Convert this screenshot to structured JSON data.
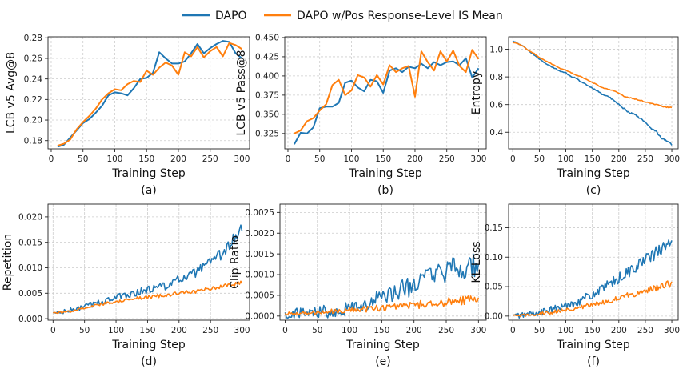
{
  "legend": {
    "entries": [
      {
        "name": "DAPO",
        "color": "#1f77b4"
      },
      {
        "name": "DAPO w/Pos Response-Level IS Mean",
        "color": "#ff7f0e"
      }
    ]
  },
  "chart_data": [
    {
      "type": "line",
      "caption": "(a)",
      "xlabel": "Training Step",
      "ylabel": "LCB v5 Avg@8",
      "xlim": [
        -5,
        312
      ],
      "ylim": [
        0.172,
        0.281
      ],
      "xticks": [
        0,
        50,
        100,
        150,
        200,
        250,
        300
      ],
      "yticks": [
        0.18,
        0.2,
        0.22,
        0.24,
        0.26,
        0.28
      ],
      "ytick_labels": [
        "0.18",
        "0.20",
        "0.22",
        "0.24",
        "0.26",
        "0.28"
      ],
      "grid": true,
      "series": [
        {
          "name": "DAPO",
          "color": "#1f77b4",
          "x": [
            10,
            20,
            30,
            40,
            50,
            60,
            70,
            80,
            90,
            100,
            110,
            120,
            130,
            140,
            150,
            160,
            170,
            180,
            190,
            200,
            210,
            220,
            230,
            240,
            250,
            260,
            270,
            280,
            290,
            300
          ],
          "y": [
            0.174,
            0.176,
            0.183,
            0.19,
            0.197,
            0.201,
            0.207,
            0.214,
            0.224,
            0.227,
            0.226,
            0.224,
            0.231,
            0.24,
            0.241,
            0.246,
            0.266,
            0.26,
            0.255,
            0.255,
            0.257,
            0.265,
            0.274,
            0.265,
            0.27,
            0.274,
            0.277,
            0.276,
            0.265,
            0.26
          ]
        },
        {
          "name": "DAPO w/Pos Response-Level IS Mean",
          "color": "#ff7f0e",
          "x": [
            10,
            20,
            30,
            40,
            50,
            60,
            70,
            80,
            90,
            100,
            110,
            120,
            130,
            140,
            150,
            160,
            170,
            180,
            190,
            200,
            210,
            220,
            230,
            240,
            250,
            260,
            270,
            280,
            290,
            300
          ],
          "y": [
            0.175,
            0.177,
            0.181,
            0.191,
            0.198,
            0.204,
            0.211,
            0.22,
            0.226,
            0.23,
            0.229,
            0.235,
            0.238,
            0.237,
            0.248,
            0.244,
            0.251,
            0.256,
            0.253,
            0.244,
            0.266,
            0.262,
            0.271,
            0.261,
            0.267,
            0.271,
            0.262,
            0.275,
            0.273,
            0.269
          ]
        }
      ]
    },
    {
      "type": "line",
      "caption": "(b)",
      "xlabel": "Training Step",
      "ylabel": "LCB v5 Pass@8",
      "xlim": [
        -5,
        312
      ],
      "ylim": [
        0.305,
        0.451
      ],
      "xticks": [
        0,
        50,
        100,
        150,
        200,
        250,
        300
      ],
      "yticks": [
        0.325,
        0.35,
        0.375,
        0.4,
        0.425,
        0.45
      ],
      "ytick_labels": [
        "0.325",
        "0.350",
        "0.375",
        "0.400",
        "0.425",
        "0.450"
      ],
      "grid": true,
      "series": [
        {
          "name": "DAPO",
          "color": "#1f77b4",
          "x": [
            10,
            20,
            30,
            40,
            50,
            60,
            70,
            80,
            90,
            100,
            110,
            120,
            130,
            140,
            150,
            160,
            170,
            180,
            190,
            200,
            210,
            220,
            230,
            240,
            250,
            260,
            270,
            280,
            290,
            300
          ],
          "y": [
            0.311,
            0.326,
            0.325,
            0.333,
            0.358,
            0.36,
            0.36,
            0.365,
            0.391,
            0.394,
            0.385,
            0.38,
            0.395,
            0.393,
            0.378,
            0.407,
            0.41,
            0.405,
            0.412,
            0.41,
            0.416,
            0.41,
            0.418,
            0.414,
            0.418,
            0.419,
            0.414,
            0.423,
            0.398,
            0.41
          ]
        },
        {
          "name": "DAPO w/Pos Response-Level IS Mean",
          "color": "#ff7f0e",
          "x": [
            10,
            20,
            30,
            40,
            50,
            60,
            70,
            80,
            90,
            100,
            110,
            120,
            130,
            140,
            150,
            160,
            170,
            180,
            190,
            200,
            210,
            220,
            230,
            240,
            250,
            260,
            270,
            280,
            290,
            300
          ],
          "y": [
            0.325,
            0.329,
            0.341,
            0.345,
            0.355,
            0.363,
            0.388,
            0.395,
            0.375,
            0.381,
            0.401,
            0.398,
            0.386,
            0.401,
            0.389,
            0.414,
            0.405,
            0.41,
            0.413,
            0.373,
            0.432,
            0.418,
            0.407,
            0.432,
            0.419,
            0.433,
            0.413,
            0.405,
            0.434,
            0.422
          ]
        }
      ]
    },
    {
      "type": "line",
      "caption": "(c)",
      "xlabel": "Training Step",
      "ylabel": "Entropy",
      "xlim": [
        -8,
        312
      ],
      "ylim": [
        0.28,
        1.09
      ],
      "xticks": [
        0,
        50,
        100,
        150,
        200,
        250,
        300
      ],
      "yticks": [
        0.4,
        0.6,
        0.8,
        1.0
      ],
      "ytick_labels": [
        "0.4",
        "0.6",
        "0.8",
        "1.0"
      ],
      "grid": true,
      "series": [
        {
          "name": "DAPO",
          "color": "#1f77b4",
          "x": [
            0,
            10,
            20,
            30,
            40,
            50,
            60,
            70,
            80,
            90,
            100,
            110,
            120,
            130,
            140,
            150,
            160,
            170,
            180,
            190,
            200,
            210,
            220,
            230,
            240,
            250,
            260,
            270,
            280,
            290,
            300
          ],
          "y": [
            1.06,
            1.04,
            1.02,
            0.99,
            0.96,
            0.93,
            0.9,
            0.88,
            0.86,
            0.84,
            0.83,
            0.8,
            0.79,
            0.76,
            0.74,
            0.72,
            0.7,
            0.67,
            0.66,
            0.63,
            0.6,
            0.57,
            0.54,
            0.53,
            0.5,
            0.47,
            0.43,
            0.41,
            0.36,
            0.34,
            0.31
          ]
        },
        {
          "name": "DAPO w/Pos Response-Level IS Mean",
          "color": "#ff7f0e",
          "x": [
            0,
            10,
            20,
            30,
            40,
            50,
            60,
            70,
            80,
            90,
            100,
            110,
            120,
            130,
            140,
            150,
            160,
            170,
            180,
            190,
            200,
            210,
            220,
            230,
            240,
            250,
            260,
            270,
            280,
            290,
            300
          ],
          "y": [
            1.05,
            1.04,
            1.02,
            0.99,
            0.97,
            0.94,
            0.92,
            0.9,
            0.88,
            0.86,
            0.85,
            0.83,
            0.81,
            0.8,
            0.78,
            0.76,
            0.74,
            0.72,
            0.71,
            0.7,
            0.68,
            0.66,
            0.65,
            0.64,
            0.63,
            0.62,
            0.61,
            0.6,
            0.59,
            0.58,
            0.58
          ]
        }
      ]
    },
    {
      "type": "line",
      "caption": "(d)",
      "xlabel": "Training Step",
      "ylabel": "Repetition",
      "xlim": [
        -8,
        312
      ],
      "ylim": [
        -0.0003,
        0.0225
      ],
      "xticks": [
        0,
        50,
        100,
        150,
        200,
        250,
        300
      ],
      "yticks": [
        0.0,
        0.005,
        0.01,
        0.015,
        0.02
      ],
      "ytick_labels": [
        "0.000",
        "0.005",
        "0.010",
        "0.015",
        "0.020"
      ],
      "grid": true,
      "series": [
        {
          "name": "DAPO",
          "color": "#1f77b4",
          "x": [
            0,
            10,
            20,
            30,
            40,
            50,
            60,
            70,
            80,
            90,
            100,
            110,
            120,
            130,
            140,
            150,
            160,
            170,
            180,
            190,
            200,
            210,
            220,
            230,
            240,
            250,
            260,
            270,
            280,
            290,
            300
          ],
          "y": [
            0.0011,
            0.0012,
            0.0014,
            0.0017,
            0.002,
            0.0024,
            0.0027,
            0.0031,
            0.0034,
            0.0038,
            0.0042,
            0.0044,
            0.0048,
            0.0051,
            0.0054,
            0.0056,
            0.006,
            0.0063,
            0.0066,
            0.007,
            0.0076,
            0.0081,
            0.0086,
            0.0093,
            0.0101,
            0.011,
            0.0119,
            0.013,
            0.0145,
            0.0162,
            0.0175
          ]
        },
        {
          "name": "DAPO w/Pos Response-Level IS Mean",
          "color": "#ff7f0e",
          "x": [
            0,
            10,
            20,
            30,
            40,
            50,
            60,
            70,
            80,
            90,
            100,
            110,
            120,
            130,
            140,
            150,
            160,
            170,
            180,
            190,
            200,
            210,
            220,
            230,
            240,
            250,
            260,
            270,
            280,
            290,
            300
          ],
          "y": [
            0.0011,
            0.0012,
            0.0013,
            0.0015,
            0.0018,
            0.0021,
            0.0024,
            0.0027,
            0.0029,
            0.0031,
            0.0033,
            0.0035,
            0.0037,
            0.0039,
            0.0041,
            0.0042,
            0.0044,
            0.0045,
            0.0047,
            0.0048,
            0.005,
            0.0052,
            0.0053,
            0.0055,
            0.0057,
            0.0059,
            0.0061,
            0.0063,
            0.0065,
            0.0067,
            0.007
          ]
        }
      ]
    },
    {
      "type": "line",
      "caption": "(e)",
      "xlabel": "Training Step",
      "ylabel": "Clip Ratio",
      "xlim": [
        -8,
        312
      ],
      "ylim": [
        -0.0001,
        0.0027
      ],
      "xticks": [
        0,
        50,
        100,
        150,
        200,
        250,
        300
      ],
      "yticks": [
        0.0,
        0.0005,
        0.001,
        0.0015,
        0.002,
        0.0025
      ],
      "ytick_labels": [
        "0.0000",
        "0.0005",
        "0.0010",
        "0.0015",
        "0.0020",
        "0.0025"
      ],
      "grid": true,
      "series": [
        {
          "name": "DAPO",
          "color": "#1f77b4",
          "x": [
            0,
            10,
            20,
            30,
            40,
            50,
            60,
            70,
            80,
            90,
            100,
            110,
            120,
            130,
            140,
            150,
            160,
            170,
            180,
            190,
            200,
            210,
            220,
            230,
            240,
            250,
            260,
            270,
            280,
            290,
            300
          ],
          "y": [
            5e-05,
            6e-05,
            7e-05,
            8e-05,
            9e-05,
            0.00011,
            0.00012,
            0.00014,
            0.00016,
            0.00018,
            0.00021,
            0.00024,
            0.00028,
            0.00032,
            0.00037,
            0.00043,
            0.00049,
            0.00056,
            0.00063,
            0.0007,
            0.00077,
            0.00084,
            0.0009,
            0.00096,
            0.00101,
            0.00106,
            0.00111,
            0.00115,
            0.00119,
            0.00123,
            0.00125
          ]
        },
        {
          "name": "DAPO w/Pos Response-Level IS Mean",
          "color": "#ff7f0e",
          "x": [
            0,
            10,
            20,
            30,
            40,
            50,
            60,
            70,
            80,
            90,
            100,
            110,
            120,
            130,
            140,
            150,
            160,
            170,
            180,
            190,
            200,
            210,
            220,
            230,
            240,
            250,
            260,
            270,
            280,
            290,
            300
          ],
          "y": [
            5e-05,
            6e-05,
            6e-05,
            7e-05,
            8e-05,
            9e-05,
            0.0001,
            0.00011,
            0.00012,
            0.00013,
            0.00014,
            0.00015,
            0.00016,
            0.00017,
            0.00018,
            0.0002,
            0.00021,
            0.00022,
            0.00024,
            0.00025,
            0.00026,
            0.00028,
            0.00029,
            0.0003,
            0.00032,
            0.00033,
            0.00035,
            0.00037,
            0.00039,
            0.00041,
            0.00043
          ]
        }
      ]
    },
    {
      "type": "line",
      "caption": "(f)",
      "xlabel": "Training Step",
      "ylabel": "KL Loss",
      "xlim": [
        -8,
        312
      ],
      "ylim": [
        -0.007,
        0.19
      ],
      "xticks": [
        0,
        50,
        100,
        150,
        200,
        250,
        300
      ],
      "yticks": [
        0.0,
        0.05,
        0.1,
        0.15
      ],
      "ytick_labels": [
        "0.00",
        "0.05",
        "0.10",
        "0.15"
      ],
      "grid": true,
      "series": [
        {
          "name": "DAPO",
          "color": "#1f77b4",
          "x": [
            0,
            10,
            20,
            30,
            40,
            50,
            60,
            70,
            80,
            90,
            100,
            110,
            120,
            130,
            140,
            150,
            160,
            170,
            180,
            190,
            200,
            210,
            220,
            230,
            240,
            250,
            260,
            270,
            280,
            290,
            300
          ],
          "y": [
            0.0,
            0.001,
            0.002,
            0.003,
            0.004,
            0.006,
            0.008,
            0.01,
            0.012,
            0.015,
            0.018,
            0.021,
            0.024,
            0.028,
            0.032,
            0.036,
            0.041,
            0.046,
            0.052,
            0.058,
            0.064,
            0.07,
            0.076,
            0.083,
            0.089,
            0.095,
            0.101,
            0.107,
            0.113,
            0.119,
            0.125
          ]
        },
        {
          "name": "DAPO w/Pos Response-Level IS Mean",
          "color": "#ff7f0e",
          "x": [
            0,
            10,
            20,
            30,
            40,
            50,
            60,
            70,
            80,
            90,
            100,
            110,
            120,
            130,
            140,
            150,
            160,
            170,
            180,
            190,
            200,
            210,
            220,
            230,
            240,
            250,
            260,
            270,
            280,
            290,
            300
          ],
          "y": [
            0.0,
            0.001,
            0.001,
            0.002,
            0.003,
            0.004,
            0.005,
            0.006,
            0.007,
            0.009,
            0.01,
            0.012,
            0.013,
            0.015,
            0.017,
            0.019,
            0.021,
            0.023,
            0.026,
            0.028,
            0.031,
            0.033,
            0.036,
            0.038,
            0.041,
            0.043,
            0.046,
            0.048,
            0.051,
            0.053,
            0.056
          ]
        }
      ]
    }
  ]
}
